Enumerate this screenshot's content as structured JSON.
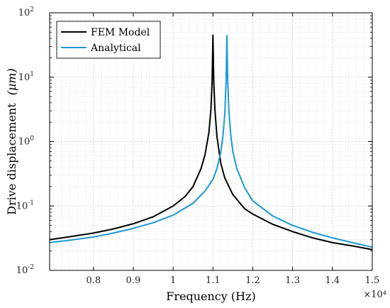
{
  "chart_data": {
    "type": "line",
    "title": "",
    "xlabel": "Frequency (Hz)",
    "ylabel_prefix": "Drive displacement",
    "ylabel_unit": "(μm)",
    "xscale_exponent_label": "×10⁴",
    "xlim": [
      6900,
      15000
    ],
    "ylim": [
      0.01,
      100
    ],
    "yscale": "log",
    "grid": true,
    "legend_position": "top-left",
    "x_ticks": [
      8000,
      9000,
      10000,
      11000,
      12000,
      13000,
      14000,
      15000
    ],
    "x_tick_labels": [
      "0.8",
      "0.9",
      "1",
      "1.1",
      "1.2",
      "1.3",
      "1.4",
      "1.5"
    ],
    "y_ticks": [
      0.01,
      0.1,
      1,
      10,
      100
    ],
    "y_tick_labels": [
      {
        "base": "10",
        "exp": "-2"
      },
      {
        "base": "10",
        "exp": "-1"
      },
      {
        "base": "10",
        "exp": "0"
      },
      {
        "base": "10",
        "exp": "1"
      },
      {
        "base": "10",
        "exp": "2"
      }
    ],
    "series": [
      {
        "name": "FEM Model",
        "color": "#000000",
        "x": [
          6900,
          7500,
          8000,
          8500,
          9000,
          9500,
          10000,
          10300,
          10500,
          10700,
          10800,
          10900,
          10950,
          10980,
          11000,
          11020,
          11050,
          11100,
          11200,
          11300,
          11500,
          11800,
          12000,
          12500,
          13000,
          13500,
          14000,
          14500,
          15000
        ],
        "y": [
          0.03,
          0.034,
          0.038,
          0.044,
          0.053,
          0.068,
          0.1,
          0.14,
          0.2,
          0.38,
          0.62,
          1.4,
          3.2,
          9.0,
          45,
          9.0,
          3.1,
          1.2,
          0.45,
          0.27,
          0.15,
          0.09,
          0.075,
          0.052,
          0.04,
          0.032,
          0.027,
          0.024,
          0.021
        ]
      },
      {
        "name": "Analytical",
        "color": "#1a9ad7",
        "x": [
          6900,
          7500,
          8000,
          8500,
          9000,
          9500,
          10000,
          10500,
          10800,
          11000,
          11100,
          11200,
          11250,
          11300,
          11330,
          11350,
          11370,
          11400,
          11450,
          11500,
          11600,
          11800,
          12000,
          12500,
          13000,
          13500,
          14000,
          14500,
          15000
        ],
        "y": [
          0.027,
          0.03,
          0.033,
          0.038,
          0.045,
          0.055,
          0.072,
          0.11,
          0.17,
          0.26,
          0.38,
          0.7,
          1.2,
          2.8,
          9.0,
          44,
          9.0,
          3.0,
          1.2,
          0.7,
          0.38,
          0.19,
          0.12,
          0.07,
          0.05,
          0.039,
          0.032,
          0.027,
          0.023
        ]
      }
    ]
  }
}
